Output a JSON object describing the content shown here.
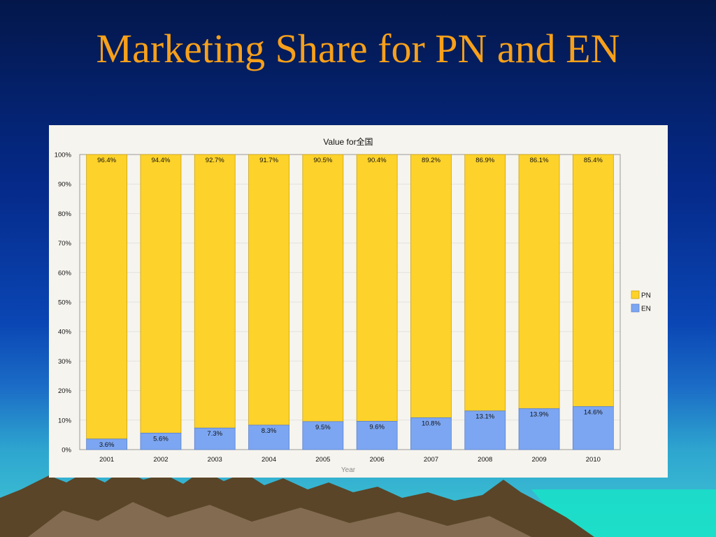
{
  "slide": {
    "title": "Marketing Share for PN and EN"
  },
  "colors": {
    "title": "#f7a01a",
    "pn": "#fdd22a",
    "en": "#7ca6f2",
    "panel": "#f6f4ee",
    "mountain": "#5a4528",
    "sea": "#19e0c8"
  },
  "chart_data": {
    "type": "bar",
    "stacked": true,
    "title": "Value  for全国",
    "xlabel": "Year",
    "ylabel": "",
    "categories": [
      "2001",
      "2002",
      "2003",
      "2004",
      "2005",
      "2006",
      "2007",
      "2008",
      "2009",
      "2010"
    ],
    "series": [
      {
        "name": "EN",
        "values": [
          3.6,
          5.6,
          7.3,
          8.3,
          9.5,
          9.6,
          10.8,
          13.1,
          13.9,
          14.6
        ],
        "labels": [
          "3.6%",
          "5.6%",
          "7.3%",
          "8.3%",
          "9.5%",
          "9.6%",
          "10.8%",
          "13.1%",
          "13.9%",
          "14.6%"
        ]
      },
      {
        "name": "PN",
        "values": [
          96.4,
          94.4,
          92.7,
          91.7,
          90.5,
          90.4,
          89.2,
          86.9,
          86.1,
          85.4
        ],
        "labels": [
          "96.4%",
          "94.4%",
          "92.7%",
          "91.7%",
          "90.5%",
          "90.4%",
          "89.2%",
          "86.9%",
          "86.1%",
          "85.4%"
        ]
      }
    ],
    "ylim": [
      0,
      100
    ],
    "yticks": [
      "0%",
      "10%",
      "20%",
      "30%",
      "40%",
      "50%",
      "60%",
      "70%",
      "80%",
      "90%",
      "100%"
    ],
    "legend": {
      "position": "right",
      "items": [
        "PN",
        "EN"
      ]
    },
    "grid": true
  }
}
